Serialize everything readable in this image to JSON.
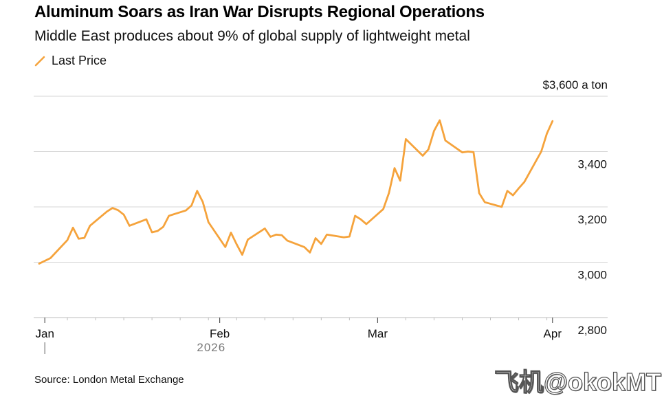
{
  "chart_data": {
    "type": "line",
    "title": "Aluminum Soars as Iran War Disrupts Regional Operations",
    "subtitle": "Middle East produces about 9% of global supply of lightweight metal",
    "legend": [
      {
        "name": "Last Price",
        "color": "#f5a33c"
      }
    ],
    "y_unit_label": "$3,600 a ton",
    "ylim": [
      2800,
      3600
    ],
    "yticks": [
      {
        "value": 3600,
        "label": "$3,600 a ton"
      },
      {
        "value": 3400,
        "label": "3,400"
      },
      {
        "value": 3200,
        "label": "3,200"
      },
      {
        "value": 3000,
        "label": "3,000"
      },
      {
        "value": 2800,
        "label": "2,800"
      }
    ],
    "xlim": [
      0,
      92
    ],
    "xticks": [
      {
        "value": 1,
        "label": "Jan"
      },
      {
        "value": 32,
        "label": "Feb"
      },
      {
        "value": 60,
        "label": "Mar"
      },
      {
        "value": 91,
        "label": "Apr"
      }
    ],
    "minor_xticks": [
      5,
      10,
      15,
      20,
      25,
      30,
      35,
      40,
      45,
      50,
      55,
      65,
      70,
      75,
      80,
      85,
      90
    ],
    "year_label": "2026",
    "grid": true,
    "series": [
      {
        "name": "Last Price",
        "color": "#f5a33c",
        "x": [
          0,
          2,
          5,
          6,
          7,
          8,
          9,
          12,
          13,
          14,
          15,
          16,
          19,
          20,
          21,
          22,
          23,
          26,
          27,
          28,
          29,
          30,
          33,
          34,
          35,
          36,
          37,
          40,
          41,
          42,
          43,
          44,
          47,
          48,
          49,
          50,
          51,
          54,
          55,
          56,
          57,
          58,
          61,
          62,
          63,
          64,
          65,
          68,
          69,
          70,
          71,
          72,
          75,
          76,
          77,
          78,
          79,
          82,
          83,
          84,
          85,
          86,
          89,
          90,
          91
        ],
        "values": [
          2995,
          3015,
          3080,
          3125,
          3085,
          3088,
          3132,
          3183,
          3196,
          3188,
          3172,
          3132,
          3155,
          3108,
          3113,
          3128,
          3168,
          3187,
          3205,
          3258,
          3218,
          3145,
          3055,
          3107,
          3065,
          3027,
          3082,
          3122,
          3092,
          3100,
          3098,
          3078,
          3055,
          3035,
          3087,
          3066,
          3100,
          3090,
          3093,
          3168,
          3155,
          3138,
          3192,
          3250,
          3340,
          3295,
          3445,
          3385,
          3408,
          3475,
          3513,
          3440,
          3397,
          3400,
          3398,
          3250,
          3217,
          3200,
          3258,
          3242,
          3267,
          3290,
          3400,
          3465,
          3510
        ]
      }
    ]
  },
  "source": "Source: London Metal Exchange",
  "watermark": "飞机@okokMT"
}
